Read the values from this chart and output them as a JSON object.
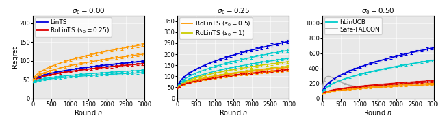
{
  "panel0": {
    "title": "$\\sigma_0 = 0.00$",
    "xlabel": "Round $n$",
    "ylabel": "Regret",
    "xlim": [
      0,
      3000
    ],
    "ylim": [
      0,
      220
    ],
    "yticks": [
      0,
      50,
      100,
      150,
      200
    ],
    "lines": [
      {
        "label": "LinTS",
        "color": "#0000dd",
        "lw": 1.3,
        "a": 45,
        "b": 0.98
      },
      {
        "label": "RoLinTS ($s_0 = 0.25$)",
        "color": "#dd0000",
        "lw": 1.3,
        "a": 43,
        "b": 0.9
      },
      {
        "label": "orange_upper",
        "color": "#ff9900",
        "lw": 1.0,
        "a": 45,
        "b": 1.8
      },
      {
        "label": "orange_lower",
        "color": "#ff9900",
        "lw": 1.0,
        "a": 44,
        "b": 1.35
      },
      {
        "label": "cyan_upper",
        "color": "#00cccc",
        "lw": 1.0,
        "a": 42,
        "b": 0.6
      },
      {
        "label": "cyan_lower",
        "color": "#00cccc",
        "lw": 1.0,
        "a": 41,
        "b": 0.5
      }
    ],
    "legend_labels": [
      "LinTS",
      "RoLinTS ($s_0 = 0.25$)"
    ],
    "legend_colors": [
      "#0000dd",
      "#dd0000"
    ]
  },
  "panel1": {
    "title": "$\\sigma_0 = 0.25$",
    "xlabel": "Round $n$",
    "ylabel": "",
    "xlim": [
      0,
      3000
    ],
    "ylim": [
      0,
      375
    ],
    "yticks": [
      0,
      50,
      100,
      150,
      200,
      250,
      300,
      350
    ],
    "lines": [
      {
        "label": "blue",
        "color": "#0000dd",
        "lw": 1.3,
        "a": 45,
        "b": 3.9
      },
      {
        "label": "cyan_upper",
        "color": "#00cccc",
        "lw": 1.0,
        "a": 43,
        "b": 3.2
      },
      {
        "label": "cyan_lower",
        "color": "#00cccc",
        "lw": 1.0,
        "a": 42,
        "b": 2.55
      },
      {
        "label": "yellow_upper",
        "color": "#cccc00",
        "lw": 1.0,
        "a": 43,
        "b": 2.25
      },
      {
        "label": "yellow_lower",
        "color": "#cccc00",
        "lw": 1.0,
        "a": 42,
        "b": 1.9
      },
      {
        "label": "orange_upper",
        "color": "#ff9900",
        "lw": 1.0,
        "a": 43,
        "b": 1.78
      },
      {
        "label": "orange_lower",
        "color": "#ff9900",
        "lw": 1.0,
        "a": 42,
        "b": 1.55
      },
      {
        "label": "red",
        "color": "#dd0000",
        "lw": 1.3,
        "a": 43,
        "b": 1.6
      }
    ],
    "legend_labels": [
      "RoLinTS ($s_0 = 0.5$)",
      "RoLinTS ($s_0 = 1$)"
    ],
    "legend_colors": [
      "#ff9900",
      "#cccc00"
    ]
  },
  "panel2": {
    "title": "$\\sigma_0 = 0.50$",
    "xlabel": "Round $n$",
    "ylabel": "",
    "xlim": [
      0,
      3000
    ],
    "ylim": [
      0,
      1100
    ],
    "yticks": [
      0,
      200,
      400,
      600,
      800,
      1000
    ],
    "lines": [
      {
        "label": "gray",
        "color": "#aaaaaa",
        "lw": 1.0,
        "a": 60,
        "b": 30.0,
        "curve": "linear_drop"
      },
      {
        "label": "blue",
        "color": "#0000dd",
        "lw": 1.3,
        "a": 60,
        "b": 11.2
      },
      {
        "label": "cyan",
        "color": "#00cccc",
        "lw": 1.3,
        "a": 58,
        "b": 8.2
      },
      {
        "label": "red_upper",
        "color": "#dd0000",
        "lw": 1.0,
        "a": 57,
        "b": 3.3
      },
      {
        "label": "red_lower",
        "color": "#dd0000",
        "lw": 1.0,
        "a": 56,
        "b": 3.0
      },
      {
        "label": "orange_upper",
        "color": "#ff9900",
        "lw": 1.0,
        "a": 56,
        "b": 2.65
      },
      {
        "label": "orange_lower",
        "color": "#ff9900",
        "lw": 1.0,
        "a": 55,
        "b": 2.35
      }
    ],
    "legend_labels": [
      "hLinUCB",
      "Safe-FALCON"
    ],
    "legend_colors": [
      "#00cccc",
      "#aaaaaa"
    ]
  },
  "n_points": 300,
  "x_max": 3000,
  "title_fontsize": 7.5,
  "label_fontsize": 7,
  "tick_fontsize": 6,
  "legend_fontsize": 6.5
}
